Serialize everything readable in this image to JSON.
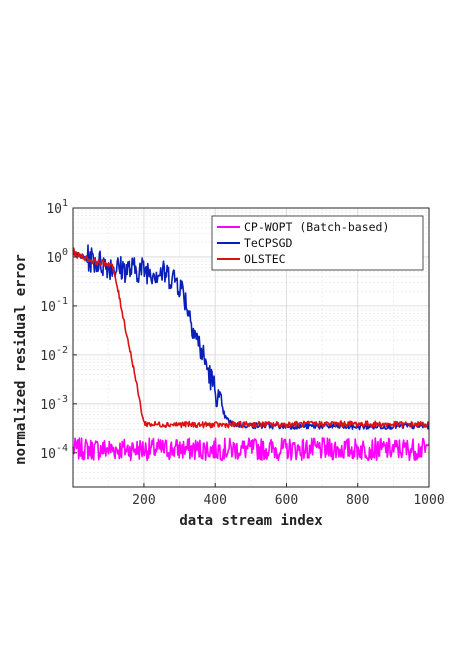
{
  "chart_data": {
    "type": "line",
    "title": "",
    "xlabel": "data stream index",
    "ylabel": "normalized residual error",
    "xlim": [
      1,
      1000
    ],
    "ylim": [
      2e-05,
      10
    ],
    "yscale": "log",
    "grid": true,
    "minor_grid": true,
    "legend_position": "top-right",
    "x_ticks": [
      200,
      400,
      600,
      800,
      1000
    ],
    "y_ticks": [
      {
        "base": "10",
        "exp": "-4"
      },
      {
        "base": "10",
        "exp": "-3"
      },
      {
        "base": "10",
        "exp": "-2"
      },
      {
        "base": "10",
        "exp": "-1"
      },
      {
        "base": "10",
        "exp": "0"
      },
      {
        "base": "10",
        "exp": "1"
      }
    ],
    "series": [
      {
        "name": "CP-WOPT (Batch-based)",
        "color": "#ff00ff",
        "x": [
          1,
          1000
        ],
        "y": [
          0.00012,
          0.00012
        ],
        "noise_band": [
          7e-05,
          0.0002
        ]
      },
      {
        "name": "TeCPSGD",
        "color": "#0a1fb8",
        "x": [
          1,
          10,
          30,
          50,
          80,
          120,
          160,
          200,
          230,
          260,
          290,
          310,
          330,
          350,
          370,
          390,
          410,
          430,
          450,
          500,
          600,
          700,
          800,
          900,
          1000
        ],
        "y": [
          1.4,
          1.1,
          1.0,
          0.9,
          0.75,
          0.6,
          0.55,
          0.55,
          0.5,
          0.45,
          0.35,
          0.2,
          0.06,
          0.02,
          0.008,
          0.003,
          0.0012,
          0.0005,
          0.00038,
          0.00036,
          0.00035,
          0.00035,
          0.00034,
          0.00035,
          0.00035
        ],
        "noise_band_upto": 420
      },
      {
        "name": "OLSTEC",
        "color": "#dd1111",
        "x": [
          1,
          10,
          30,
          60,
          90,
          110,
          125,
          140,
          155,
          170,
          185,
          200,
          220,
          300,
          400,
          500,
          600,
          700,
          800,
          900,
          1000
        ],
        "y": [
          1.4,
          1.1,
          1.0,
          0.8,
          0.75,
          0.7,
          0.25,
          0.07,
          0.02,
          0.006,
          0.0015,
          0.0004,
          0.00038,
          0.00038,
          0.00037,
          0.00038,
          0.00038,
          0.00039,
          0.00039,
          0.00038,
          0.00038
        ]
      }
    ]
  }
}
